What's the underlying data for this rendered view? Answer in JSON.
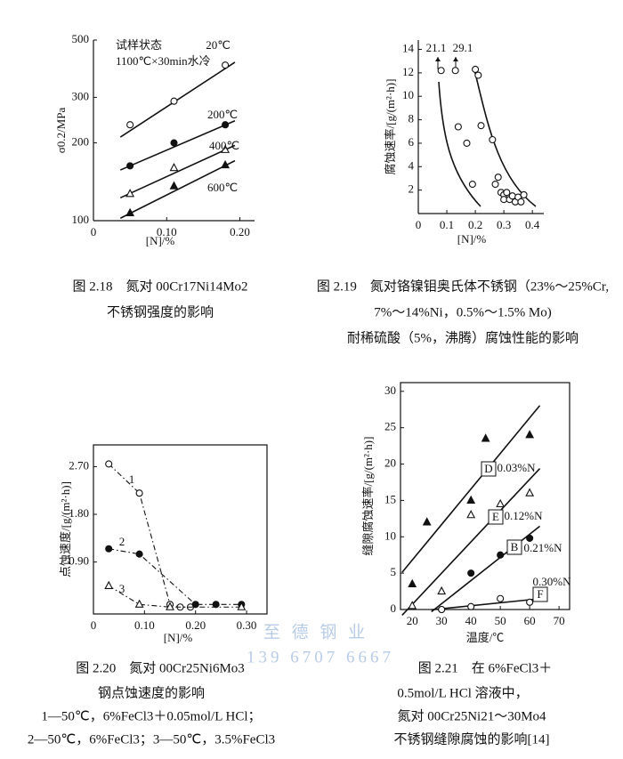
{
  "chart_data": [
    {
      "type": "line",
      "trend": "linear",
      "yscale": "log",
      "xlabel": "[N]/%",
      "ylabel": "σ0.2/MPa",
      "xlim": [
        0,
        0.22
      ],
      "ylim": [
        100,
        500
      ],
      "xticks": [
        0,
        {
          "value": 0.1,
          "label": "0.10"
        },
        {
          "value": 0.2,
          "label": "0.20"
        }
      ],
      "yticks": [
        100,
        200,
        300,
        500
      ],
      "annotations": [
        "试样状态",
        "1100℃×30min水冷"
      ],
      "series": [
        {
          "name": "20℃",
          "marker": "open-circle",
          "color": "#111",
          "x": [
            0.05,
            0.11,
            0.18
          ],
          "values": [
            235,
            290,
            400
          ]
        },
        {
          "name": "200℃",
          "marker": "filled-circle",
          "color": "#111",
          "x": [
            0.05,
            0.11,
            0.18
          ],
          "values": [
            163,
            200,
            235
          ]
        },
        {
          "name": "400℃",
          "marker": "open-triangle",
          "color": "#111",
          "x": [
            0.05,
            0.11,
            0.18
          ],
          "values": [
            127,
            160,
            188
          ]
        },
        {
          "name": "600℃",
          "marker": "filled-triangle",
          "color": "#111",
          "x": [
            0.05,
            0.11,
            0.18
          ],
          "values": [
            107,
            136,
            164
          ]
        }
      ],
      "caption": [
        "图 2.18　氮对 00Cr17Ni14Mo2",
        "不锈钢强度的影响"
      ]
    },
    {
      "type": "scatter",
      "xlabel": "[N]/%",
      "ylabel": "腐蚀速率/[g/(m²·h)]",
      "xlim": [
        0,
        0.44
      ],
      "ylim": [
        0,
        14.8
      ],
      "xticks": [
        0,
        0.1,
        0.2,
        0.3,
        0.4
      ],
      "yticks": [
        2,
        4,
        6,
        8,
        10,
        12,
        14
      ],
      "annotations": [
        "21.1",
        "29.1"
      ],
      "series": [
        {
          "marker": "open-circle",
          "color": "#111",
          "x": [
            0.08,
            0.13,
            0.14,
            0.17,
            0.2,
            0.21,
            0.22,
            0.19,
            0.26,
            0.27,
            0.28,
            0.29,
            0.3,
            0.3,
            0.31,
            0.32,
            0.33,
            0.34,
            0.35,
            0.36,
            0.37
          ],
          "values": [
            12.2,
            12.2,
            7.4,
            6,
            12.3,
            11.8,
            7.5,
            2.5,
            6.3,
            2.5,
            3.1,
            1.8,
            1.6,
            1.2,
            1.8,
            1.2,
            1.5,
            1,
            1.4,
            1,
            1.6
          ]
        }
      ],
      "caption": [
        "图 2.19　氮对铬镍钼奥氏体不锈钢（23%～25%Cr,",
        "7%～14%Ni，0.5%～1.5% Mo)",
        "耐稀硫酸（5%，沸腾）腐蚀性能的影响"
      ]
    },
    {
      "type": "line",
      "line_style": "dashdot",
      "xlabel": "[N]/%",
      "ylabel": "点蚀速度/[g/(m²·h)]",
      "xlim": [
        0,
        0.34
      ],
      "ylim": [
        -0.08,
        3.11
      ],
      "xticks": [
        0,
        {
          "value": 0.1,
          "label": "0.10"
        },
        {
          "value": 0.2,
          "label": "0.20"
        },
        {
          "value": 0.3,
          "label": "0.30"
        }
      ],
      "yticks": [
        {
          "value": 0.9,
          "label": "0.90"
        },
        {
          "value": 1.8,
          "label": "1.80"
        },
        {
          "value": 2.7,
          "label": "2.70"
        }
      ],
      "series": [
        {
          "name": "1",
          "marker": "open-circle",
          "color": "#111",
          "x": [
            0.03,
            0.09,
            0.15,
            0.17,
            0.19
          ],
          "values": [
            2.75,
            2.2,
            0.1,
            0.05,
            0.05
          ]
        },
        {
          "name": "2",
          "marker": "filled-circle",
          "color": "#111",
          "x": [
            0.03,
            0.09,
            0.2,
            0.24,
            0.29
          ],
          "values": [
            1.15,
            1.05,
            0.1,
            0.1,
            0.1
          ]
        },
        {
          "name": "3",
          "marker": "open-triangle",
          "color": "#111",
          "x": [
            0.03,
            0.09,
            0.15,
            0.29
          ],
          "values": [
            0.45,
            0.1,
            0.05,
            0.05
          ]
        }
      ],
      "caption": [
        "图 2.20　氮对 00Cr25Ni6Mo3",
        "钢点蚀速度的影响",
        "1—50℃，6%FeCl3＋0.05mol/L HCl；",
        "2—50℃，6%FeCl3；3—50℃，3.5%FeCl3"
      ]
    },
    {
      "type": "line",
      "trend": "linear",
      "xlabel": "温度/℃",
      "ylabel": "缝隙腐蚀速率/[g/(m²·h)]",
      "xlim": [
        16,
        73.6
      ],
      "ylim": [
        0,
        31.2
      ],
      "xticks": [
        20,
        30,
        40,
        50,
        60,
        70
      ],
      "yticks": [
        0,
        5,
        10,
        15,
        20,
        25,
        30
      ],
      "series": [
        {
          "tag": "D",
          "name": "0.03%N",
          "marker": "filled-triangle",
          "color": "#111",
          "x": [
            20,
            25,
            40,
            45,
            60
          ],
          "values": [
            3.5,
            12,
            15,
            23.5,
            24
          ]
        },
        {
          "tag": "E",
          "name": "0.12%N",
          "marker": "open-triangle",
          "color": "#111",
          "x": [
            20,
            30,
            40,
            50,
            60
          ],
          "values": [
            0.5,
            2.5,
            13,
            14.5,
            16
          ]
        },
        {
          "tag": "B",
          "name": "0.21%N",
          "marker": "filled-circle",
          "color": "#111",
          "x": [
            30,
            40,
            50,
            60
          ],
          "values": [
            0,
            5,
            7.5,
            9.8
          ]
        },
        {
          "tag": "F",
          "name": "0.30%N",
          "marker": "open-circle",
          "color": "#111",
          "x": [
            30,
            40,
            50,
            60
          ],
          "values": [
            0,
            0.4,
            1.5,
            1
          ]
        }
      ],
      "caption": [
        "图 2.21　在 6%FeCl3＋",
        "0.5mol/L HCl 溶液中，",
        "氮对 00Cr25Ni21～30Mo4",
        "不锈钢缝隙腐蚀的影响[14]"
      ]
    }
  ],
  "watermark": [
    "至 德 钢 业",
    "139 6707 6667"
  ]
}
